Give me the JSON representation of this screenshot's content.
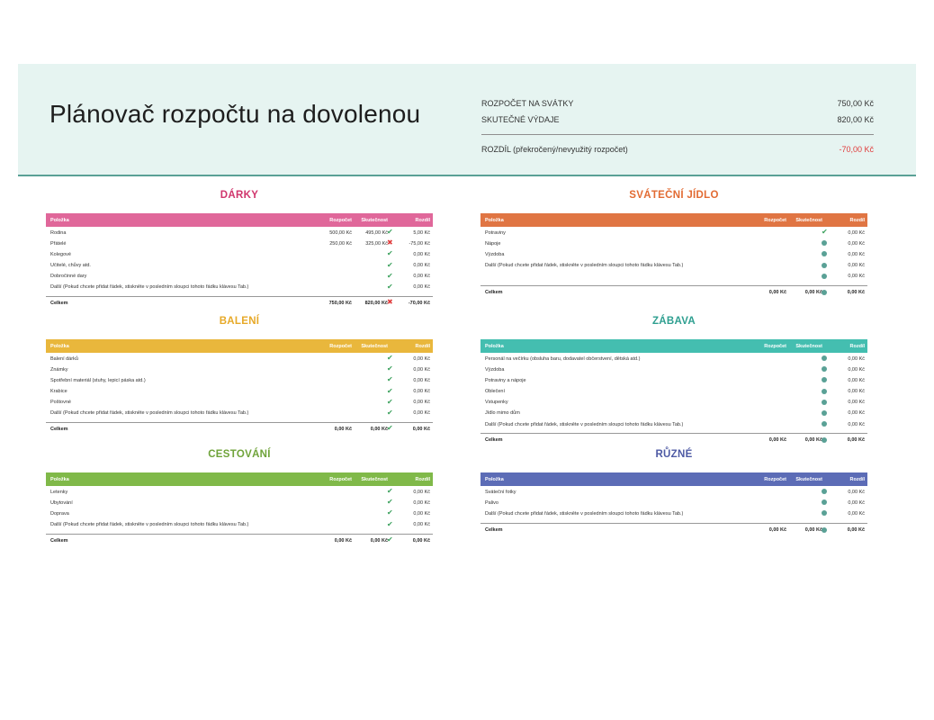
{
  "title": "Plánovač rozpočtu na dovolenou",
  "summary": {
    "budget_label": "ROZPOČET NA SVÁTKY",
    "budget_value": "750,00 Kč",
    "actual_label": "SKUTEČNÉ VÝDAJE",
    "actual_value": "820,00 Kč",
    "diff_label": "ROZDÍL (překročený/nevyužitý rozpočet)",
    "diff_value": "-70,00 Kč"
  },
  "colors": {
    "header_bg": "#e6f4f1",
    "header_rule": "#5aa196",
    "darky": "#e0679a",
    "darky_title": "#d0356c",
    "baleni": "#e9b73c",
    "baleni_title": "#e7a928",
    "cestovani": "#80b949",
    "cestovani_title": "#6fa33a",
    "jidlo": "#e07543",
    "jidlo_title": "#e26b33",
    "zabava": "#44beb0",
    "zabava_title": "#2e9f90",
    "ruzne": "#5c6cb6",
    "ruzne_title": "#4e5aa4",
    "ok": "#3aa05c",
    "over": "#e03c3c"
  },
  "columns": {
    "item": "Položka",
    "budget": "Rozpočet",
    "actual": "Skutečnost",
    "diff": "Rozdíl"
  },
  "sections": {
    "darky": {
      "title": "DÁRKY",
      "rows": [
        {
          "item": "Rodina",
          "budget": "500,00 Kč",
          "actual": "495,00 Kč",
          "mark": "check-icon",
          "diff": "5,00 Kč"
        },
        {
          "item": "Přátelé",
          "budget": "250,00 Kč",
          "actual": "325,00 Kč",
          "mark": "cross-icon",
          "diff": "-75,00 Kč"
        },
        {
          "item": "Kolegové",
          "budget": "",
          "actual": "",
          "mark": "check-icon",
          "diff": "0,00 Kč"
        },
        {
          "item": "Učitelé, chůvy atd.",
          "budget": "",
          "actual": "",
          "mark": "check-icon",
          "diff": "0,00 Kč"
        },
        {
          "item": "Dobročinné dary",
          "budget": "",
          "actual": "",
          "mark": "check-icon",
          "diff": "0,00 Kč"
        },
        {
          "item": "Další (Pokud chcete přidat řádek, stiskněte v posledním sloupci tohoto řádku klávesu Tab.)",
          "budget": "",
          "actual": "",
          "mark": "check-icon",
          "diff": "0,00 Kč"
        }
      ],
      "total": {
        "label": "Celkem",
        "budget": "750,00 Kč",
        "actual": "820,00 Kč",
        "mark": "cross-icon",
        "diff": "-70,00 Kč"
      }
    },
    "baleni": {
      "title": "BALENÍ",
      "rows": [
        {
          "item": "Balení dárků",
          "budget": "",
          "actual": "",
          "mark": "check-icon",
          "diff": "0,00 Kč"
        },
        {
          "item": "Známky",
          "budget": "",
          "actual": "",
          "mark": "check-icon",
          "diff": "0,00 Kč"
        },
        {
          "item": "Spotřební materiál (stuhy, lepicí páska atd.)",
          "budget": "",
          "actual": "",
          "mark": "check-icon",
          "diff": "0,00 Kč"
        },
        {
          "item": "Krabice",
          "budget": "",
          "actual": "",
          "mark": "check-icon",
          "diff": "0,00 Kč"
        },
        {
          "item": "Poštovné",
          "budget": "",
          "actual": "",
          "mark": "check-icon",
          "diff": "0,00 Kč"
        },
        {
          "item": "Další (Pokud chcete přidat řádek, stiskněte v posledním sloupci tohoto řádku klávesu Tab.)",
          "budget": "",
          "actual": "",
          "mark": "check-icon",
          "diff": "0,00 Kč"
        }
      ],
      "total": {
        "label": "Celkem",
        "budget": "0,00 Kč",
        "actual": "0,00 Kč",
        "mark": "check-icon",
        "diff": "0,00 Kč"
      }
    },
    "cestovani": {
      "title": "CESTOVÁNÍ",
      "rows": [
        {
          "item": "Letenky",
          "budget": "",
          "actual": "",
          "mark": "check-icon",
          "diff": "0,00 Kč"
        },
        {
          "item": "Ubytování",
          "budget": "",
          "actual": "",
          "mark": "check-icon",
          "diff": "0,00 Kč"
        },
        {
          "item": "Doprava",
          "budget": "",
          "actual": "",
          "mark": "check-icon",
          "diff": "0,00 Kč"
        },
        {
          "item": "Další (Pokud chcete přidat řádek, stiskněte v posledním sloupci tohoto řádku klávesu Tab.)",
          "budget": "",
          "actual": "",
          "mark": "check-icon",
          "diff": "0,00 Kč"
        }
      ],
      "total": {
        "label": "Celkem",
        "budget": "0,00 Kč",
        "actual": "0,00 Kč",
        "mark": "check-icon",
        "diff": "0,00 Kč"
      }
    },
    "jidlo": {
      "title": "SVÁTEČNÍ JÍDLO",
      "rows": [
        {
          "item": "Potraviny",
          "budget": "",
          "actual": "",
          "mark": "check-icon",
          "diff": "0,00 Kč"
        },
        {
          "item": "Nápoje",
          "budget": "",
          "actual": "",
          "mark": "dot-icon",
          "diff": "0,00 Kč"
        },
        {
          "item": "Výzdoba",
          "budget": "",
          "actual": "",
          "mark": "dot-icon",
          "diff": "0,00 Kč"
        },
        {
          "item": "Další (Pokud chcete přidat řádek, stiskněte v posledním sloupci tohoto řádku klávesu Tab.)",
          "budget": "",
          "actual": "",
          "mark": "dot-icon",
          "diff": "0,00 Kč"
        },
        {
          "item": "",
          "budget": "",
          "actual": "",
          "mark": "dot-icon",
          "diff": "0,00 Kč"
        }
      ],
      "total": {
        "label": "Celkem",
        "budget": "0,00 Kč",
        "actual": "0,00 Kč",
        "mark": "dot-icon",
        "diff": "0,00 Kč"
      }
    },
    "zabava": {
      "title": "ZÁBAVA",
      "rows": [
        {
          "item": "Personál na večírku (obsluha baru, dodavatel občerstvení, dětská atd.)",
          "budget": "",
          "actual": "",
          "mark": "dot-icon",
          "diff": "0,00 Kč"
        },
        {
          "item": "Výzdoba",
          "budget": "",
          "actual": "",
          "mark": "dot-icon",
          "diff": "0,00 Kč"
        },
        {
          "item": "Potraviny a nápoje",
          "budget": "",
          "actual": "",
          "mark": "dot-icon",
          "diff": "0,00 Kč"
        },
        {
          "item": "Oblečení",
          "budget": "",
          "actual": "",
          "mark": "dot-icon",
          "diff": "0,00 Kč"
        },
        {
          "item": "Vstupenky",
          "budget": "",
          "actual": "",
          "mark": "dot-icon",
          "diff": "0,00 Kč"
        },
        {
          "item": "Jídlo mimo dům",
          "budget": "",
          "actual": "",
          "mark": "dot-icon",
          "diff": "0,00 Kč"
        },
        {
          "item": "Další (Pokud chcete přidat řádek, stiskněte v posledním sloupci tohoto řádku klávesu Tab.)",
          "budget": "",
          "actual": "",
          "mark": "dot-icon",
          "diff": "0,00 Kč"
        }
      ],
      "total": {
        "label": "Celkem",
        "budget": "0,00 Kč",
        "actual": "0,00 Kč",
        "mark": "dot-icon",
        "diff": "0,00 Kč"
      }
    },
    "ruzne": {
      "title": "RŮZNÉ",
      "rows": [
        {
          "item": "Sváteční fotky",
          "budget": "",
          "actual": "",
          "mark": "dot-icon",
          "diff": "0,00 Kč"
        },
        {
          "item": "Palivo",
          "budget": "",
          "actual": "",
          "mark": "dot-icon",
          "diff": "0,00 Kč"
        },
        {
          "item": "Další (Pokud chcete přidat řádek, stiskněte v posledním sloupci tohoto řádku klávesu Tab.)",
          "budget": "",
          "actual": "",
          "mark": "dot-icon",
          "diff": "0,00 Kč"
        }
      ],
      "total": {
        "label": "Celkem",
        "budget": "0,00 Kč",
        "actual": "0,00 Kč",
        "mark": "dot-icon",
        "diff": "0,00 Kč"
      }
    }
  }
}
